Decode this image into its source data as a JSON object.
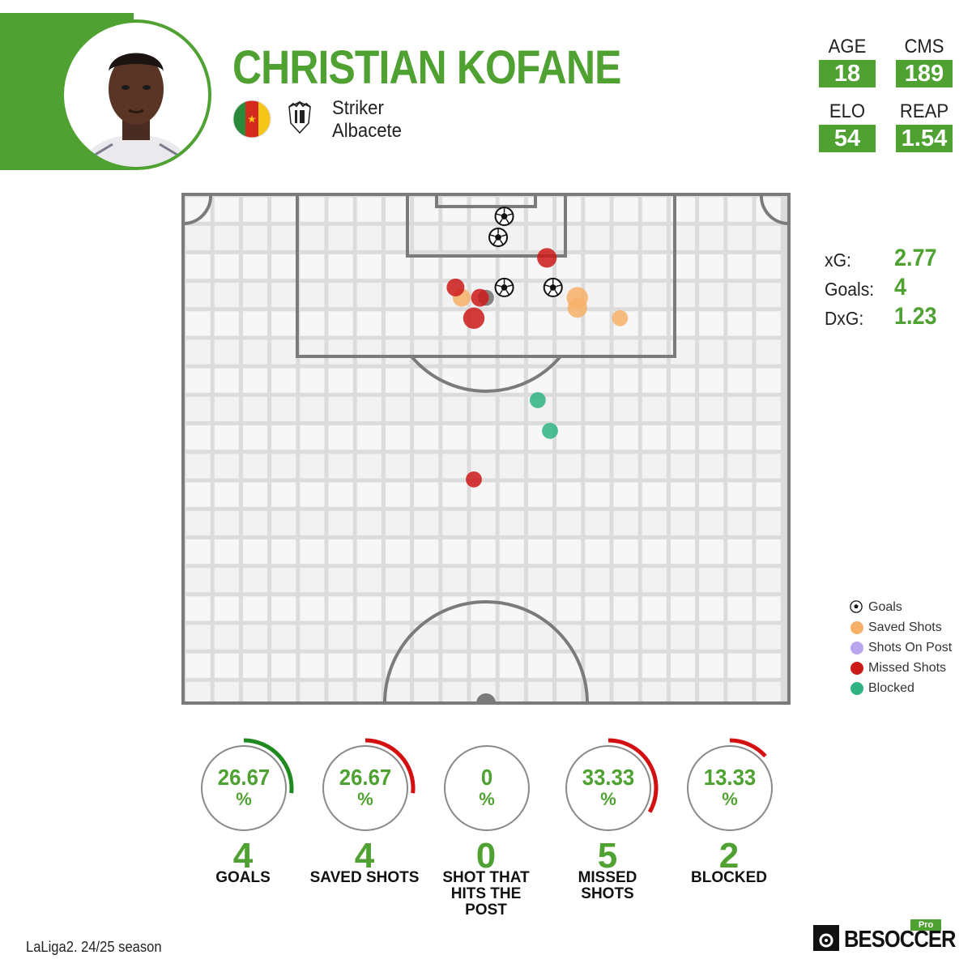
{
  "player": {
    "name": "CHRISTIAN KOFANE",
    "position": "Striker",
    "club": "Albacete",
    "flag_colors": {
      "left": "#2a8a3a",
      "middle": "#d42b1e",
      "right": "#f5c518",
      "star": "#f5c518"
    }
  },
  "stats": [
    {
      "label": "AGE",
      "value": "18"
    },
    {
      "label": "CMS",
      "value": "189"
    },
    {
      "label": "ELO",
      "value": "54"
    },
    {
      "label": "REAP",
      "value": "1.54"
    }
  ],
  "summary": {
    "xg_label": "xG:",
    "xg_value": "2.77",
    "goals_label": "Goals:",
    "goals_value": "4",
    "dxg_label": "DxG:",
    "dxg_value": "1.23"
  },
  "legend": [
    {
      "label": "Goals",
      "type": "goal",
      "color": "#111111"
    },
    {
      "label": "Saved Shots",
      "type": "saved",
      "color": "#f7b068"
    },
    {
      "label": "Shots On Post",
      "type": "post",
      "color": "#b9a6ec"
    },
    {
      "label": "Missed Shots",
      "type": "missed",
      "color": "#cc1a1a"
    },
    {
      "label": "Blocked",
      "type": "blocked",
      "color": "#2fb383"
    }
  ],
  "chart_data": {
    "type": "scatter",
    "description_units": "shot locations as fractions of the half-pitch width (x) and depth from the goal line (y)",
    "shots": [
      {
        "type": "goal",
        "x": 0.53,
        "y": 0.046,
        "size": 1
      },
      {
        "type": "goal",
        "x": 0.52,
        "y": 0.087,
        "size": 1
      },
      {
        "type": "goal",
        "x": 0.53,
        "y": 0.185,
        "size": 1
      },
      {
        "type": "goal",
        "x": 0.61,
        "y": 0.185,
        "size": 1
      },
      {
        "type": "missed",
        "x": 0.6,
        "y": 0.127,
        "size": 1.1
      },
      {
        "type": "missed",
        "x": 0.45,
        "y": 0.185,
        "size": 1.0
      },
      {
        "type": "missed",
        "x": 0.49,
        "y": 0.205,
        "size": 1.0
      },
      {
        "type": "missed",
        "x": 0.48,
        "y": 0.245,
        "size": 1.2
      },
      {
        "type": "missed",
        "x": 0.48,
        "y": 0.56,
        "size": 0.9
      },
      {
        "type": "saved",
        "x": 0.46,
        "y": 0.205,
        "size": 1.0
      },
      {
        "type": "saved",
        "x": 0.65,
        "y": 0.205,
        "size": 1.2
      },
      {
        "type": "saved",
        "x": 0.65,
        "y": 0.225,
        "size": 1.1
      },
      {
        "type": "saved",
        "x": 0.72,
        "y": 0.245,
        "size": 0.9
      },
      {
        "type": "blocked",
        "x": 0.585,
        "y": 0.405,
        "size": 0.9
      },
      {
        "type": "blocked",
        "x": 0.605,
        "y": 0.465,
        "size": 0.9
      },
      {
        "type": "blocked_shadow",
        "x": 0.5,
        "y": 0.205,
        "size": 0.9
      }
    ],
    "bars": [
      {
        "percent": "26.67",
        "percent_sign": "%",
        "count": "4",
        "label": "GOALS",
        "fraction": 0.2667,
        "color": "#1f8a1f"
      },
      {
        "percent": "26.67",
        "percent_sign": "%",
        "count": "4",
        "label": "SAVED SHOTS",
        "fraction": 0.2667,
        "color": "#d40f0f"
      },
      {
        "percent": "0",
        "percent_sign": "%",
        "count": "0",
        "label": "SHOT THAT\nHITS THE\nPOST",
        "fraction": 0,
        "color": "#d40f0f"
      },
      {
        "percent": "33.33",
        "percent_sign": "%",
        "count": "5",
        "label": "MISSED\nSHOTS",
        "fraction": 0.3333,
        "color": "#d40f0f"
      },
      {
        "percent": "13.33",
        "percent_sign": "%",
        "count": "2",
        "label": "BLOCKED",
        "fraction": 0.1333,
        "color": "#d40f0f"
      }
    ]
  },
  "footer": {
    "season": "LaLiga2. 24/25 season",
    "brand": "BESOCCER",
    "brand_badge": "Pro"
  }
}
